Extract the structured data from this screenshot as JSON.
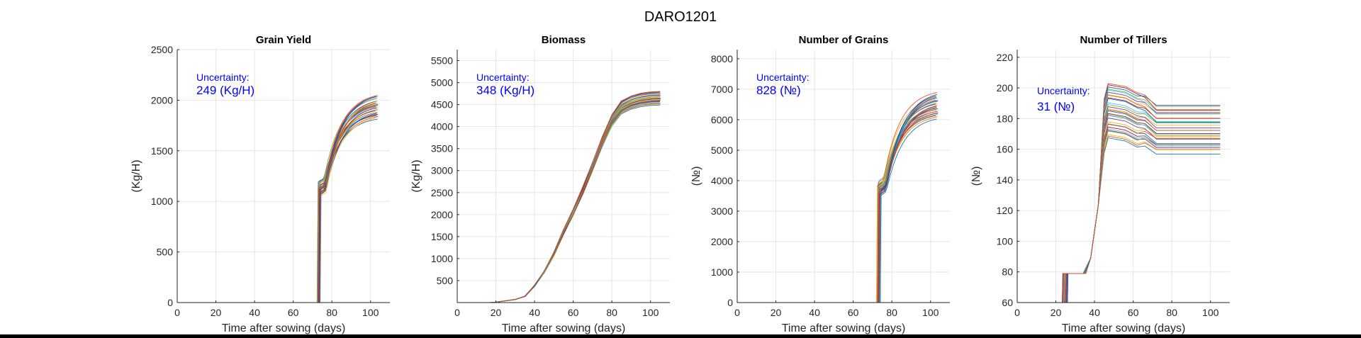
{
  "figure": {
    "title": "DARO1201"
  },
  "colors": {
    "annotation": "#0000ff",
    "grid": "#e6e6e6",
    "axis": "#262626",
    "series_palette": [
      "#0072bd",
      "#d95319",
      "#edb120",
      "#7e2f8e",
      "#77ac30",
      "#4dbeee",
      "#a2142f"
    ]
  },
  "chart_data": [
    {
      "type": "line",
      "title": "Grain Yield",
      "xlabel": "Time after sowing (days)",
      "ylabel": "(Kg/H)",
      "xlim": [
        0,
        110
      ],
      "ylim": [
        0,
        2500
      ],
      "xticks": [
        0,
        20,
        40,
        60,
        80,
        100
      ],
      "yticks": [
        0,
        500,
        1000,
        1500,
        2000,
        2500
      ],
      "grid": true,
      "annotation": {
        "label": "Uncertainty:",
        "value": "249 (Kg/H)"
      },
      "ensemble": {
        "runs": 30,
        "x_end": 104,
        "jump_day_range": [
          72,
          74
        ],
        "jump_level": [
          1050,
          1200
        ],
        "final_range": [
          1850,
          2090
        ]
      }
    },
    {
      "type": "line",
      "title": "Biomass",
      "xlabel": "Time after sowing (days)",
      "ylabel": "(Kg/H)",
      "xlim": [
        0,
        110
      ],
      "ylim": [
        0,
        5750
      ],
      "xticks": [
        0,
        20,
        40,
        60,
        80,
        100
      ],
      "yticks": [
        500,
        1000,
        1500,
        2000,
        2500,
        3000,
        3500,
        4000,
        4500,
        5000,
        5500
      ],
      "grid": true,
      "annotation": {
        "label": "Uncertainty:",
        "value": "348 (Kg/H)"
      },
      "ensemble": {
        "runs": 30,
        "x_start": 17,
        "x_end": 105,
        "final_range": [
          4500,
          4800
        ],
        "curve": [
          [
            17,
            0
          ],
          [
            20,
            10
          ],
          [
            30,
            70
          ],
          [
            35,
            140
          ],
          [
            40,
            380
          ],
          [
            45,
            700
          ],
          [
            50,
            1100
          ],
          [
            55,
            1600
          ],
          [
            60,
            2050
          ],
          [
            65,
            2550
          ],
          [
            70,
            3100
          ],
          [
            75,
            3650
          ],
          [
            80,
            4150
          ],
          [
            85,
            4450
          ],
          [
            90,
            4560
          ],
          [
            95,
            4620
          ],
          [
            100,
            4650
          ],
          [
            105,
            4660
          ]
        ]
      }
    },
    {
      "type": "line",
      "title": "Number of Grains",
      "xlabel": "Time after sowing (days)",
      "ylabel": "(№)",
      "xlim": [
        0,
        110
      ],
      "ylim": [
        0,
        8300
      ],
      "xticks": [
        0,
        20,
        40,
        60,
        80,
        100
      ],
      "yticks": [
        0,
        1000,
        2000,
        3000,
        4000,
        5000,
        6000,
        7000,
        8000
      ],
      "grid": true,
      "annotation": {
        "label": "Uncertainty:",
        "value": "828 (№)"
      },
      "ensemble": {
        "runs": 30,
        "x_end": 104,
        "jump_day_range": [
          72,
          74
        ],
        "jump_level": [
          3500,
          4000
        ],
        "final_range": [
          6150,
          7000
        ]
      }
    },
    {
      "type": "line",
      "title": "Number of Tillers",
      "xlabel": "Time after sowing (days)",
      "ylabel": "(№)",
      "xlim": [
        0,
        110
      ],
      "ylim": [
        60,
        225
      ],
      "xticks": [
        0,
        20,
        40,
        60,
        80,
        100
      ],
      "yticks": [
        60,
        80,
        100,
        120,
        140,
        160,
        180,
        200,
        220
      ],
      "grid": true,
      "annotation": {
        "label": "Uncertainty:",
        "value": "31 (№)"
      },
      "ensemble": {
        "runs": 30,
        "x_end": 105,
        "plateau_level": 79,
        "plateau_start_range": [
          23,
          26
        ],
        "peak_range": [
          168,
          203
        ],
        "final_range": [
          157,
          188
        ]
      }
    }
  ]
}
